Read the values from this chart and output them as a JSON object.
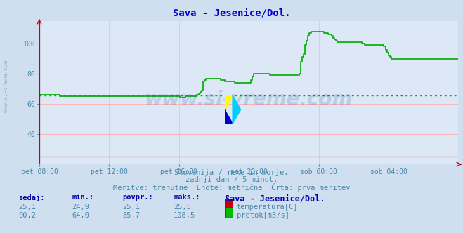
{
  "title": "Sava - Jesenice/Dol.",
  "title_color": "#0000cc",
  "bg_color": "#d0dff0",
  "plot_bg_color": "#dce8f5",
  "grid_color_h": "#ffaaaa",
  "grid_color_v": "#ffbbbb",
  "text_color": "#4488aa",
  "tick_color": "#4488aa",
  "ylim": [
    20,
    115
  ],
  "yticks": [
    40,
    60,
    80,
    100
  ],
  "xtick_labels": [
    "pet 08:00",
    "pet 12:00",
    "pet 16:00",
    "pet 20:00",
    "sob 00:00",
    "sob 04:00"
  ],
  "subtitle1": "Slovenija / reke in morje.",
  "subtitle2": "zadnji dan / 5 minut.",
  "subtitle3": "Meritve: trenutne  Enote: metrične  Črta: prva meritev",
  "watermark": "www.si-vreme.com",
  "legend_title": "Sava - Jesenice/Dol.",
  "legend_rows": [
    {
      "sedaj": "25,1",
      "min": "24,9",
      "povpr": "25,1",
      "maks": "25,5",
      "color": "#cc0000",
      "label": "temperatura[C]"
    },
    {
      "sedaj": "90,2",
      "min": "64,0",
      "povpr": "85,7",
      "maks": "108,5",
      "color": "#00bb00",
      "label": "pretok[m3/s]"
    }
  ],
  "temp_color": "#cc0000",
  "flow_color": "#00aa00",
  "avg_flow_color": "#00aa00",
  "avg_flow": 65.5,
  "n_points": 288,
  "flow_shape": [
    66,
    66,
    66,
    66,
    66,
    66,
    66,
    66,
    66,
    66,
    66,
    66,
    66,
    66,
    65,
    65,
    65,
    65,
    65,
    65,
    65,
    65,
    65,
    65,
    65,
    65,
    65,
    65,
    65,
    65,
    65,
    65,
    65,
    65,
    65,
    65,
    65,
    65,
    65,
    65,
    65,
    65,
    65,
    65,
    65,
    65,
    65,
    65,
    65,
    65,
    65,
    65,
    65,
    65,
    65,
    65,
    65,
    65,
    65,
    65,
    65,
    65,
    65,
    65,
    65,
    65,
    65,
    65,
    65,
    65,
    65,
    65,
    65,
    65,
    65,
    65,
    65,
    65,
    65,
    65,
    65,
    65,
    65,
    65,
    65,
    65,
    65,
    65,
    65,
    65,
    65,
    65,
    65,
    65,
    65,
    65,
    64,
    64,
    64,
    64,
    65,
    65,
    65,
    65,
    65,
    65,
    65,
    65,
    66,
    67,
    68,
    69,
    75,
    76,
    77,
    77,
    77,
    77,
    77,
    77,
    77,
    77,
    77,
    77,
    76,
    76,
    76,
    75,
    75,
    75,
    75,
    75,
    75,
    75,
    74,
    74,
    74,
    74,
    74,
    74,
    74,
    74,
    74,
    74,
    74,
    76,
    78,
    80,
    80,
    80,
    80,
    80,
    80,
    80,
    80,
    80,
    80,
    80,
    79,
    79,
    79,
    79,
    79,
    79,
    79,
    79,
    79,
    79,
    79,
    79,
    79,
    79,
    79,
    79,
    79,
    79,
    79,
    79,
    80,
    88,
    91,
    93,
    99,
    102,
    105,
    107,
    108,
    108,
    108,
    108,
    108,
    108,
    108,
    108,
    108,
    107,
    107,
    107,
    106,
    106,
    105,
    104,
    103,
    102,
    101,
    101,
    101,
    101,
    101,
    101,
    101,
    101,
    101,
    101,
    101,
    101,
    101,
    101,
    101,
    101,
    101,
    100,
    100,
    99,
    99,
    99,
    99,
    99,
    99,
    99,
    99,
    99,
    99,
    99,
    99,
    99,
    98,
    96,
    94,
    92,
    91,
    90,
    90,
    90,
    90,
    90,
    90,
    90,
    90,
    90,
    90,
    90,
    90,
    90,
    90,
    90,
    90,
    90,
    90,
    90,
    90,
    90,
    90,
    90,
    90,
    90,
    90,
    90,
    90,
    90,
    90,
    90,
    90,
    90,
    90,
    90,
    90,
    90,
    90,
    90,
    90,
    90,
    90
  ],
  "temp_flat": 25.1
}
